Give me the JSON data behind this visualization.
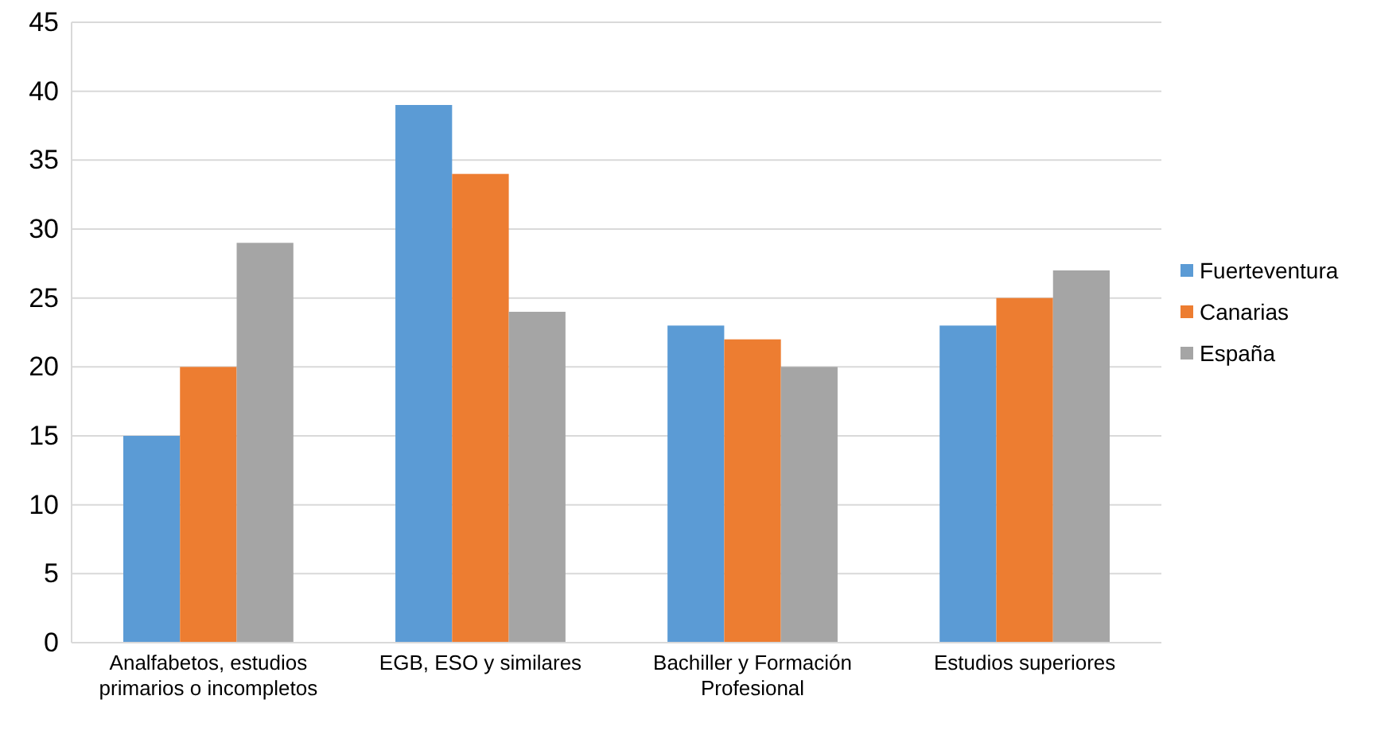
{
  "chart_data": {
    "type": "bar",
    "categories": [
      "Analfabetos, estudios primarios o incompletos",
      "EGB, ESO y similares",
      "Bachiller y Formación Profesional",
      "Estudios superiores"
    ],
    "series": [
      {
        "name": "Fuerteventura",
        "color": "#5b9bd5",
        "values": [
          15,
          39,
          23,
          23
        ]
      },
      {
        "name": "Canarias",
        "color": "#ed7d31",
        "values": [
          20,
          34,
          22,
          25
        ]
      },
      {
        "name": "España",
        "color": "#a5a5a5",
        "values": [
          29,
          24,
          20,
          27
        ]
      }
    ],
    "ylim": [
      0,
      45
    ],
    "yticks": [
      0,
      5,
      10,
      15,
      20,
      25,
      30,
      35,
      40,
      45
    ],
    "grid": "y",
    "legend": "right"
  }
}
